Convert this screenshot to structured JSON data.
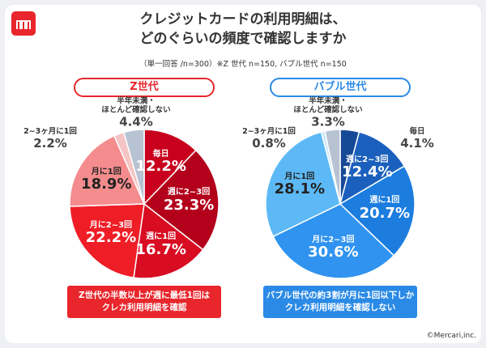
{
  "header": {
    "title": "クレジットカードの利用明細は、\nどのぐらいの頻度で確認しますか",
    "note": "（単一回答 /n=300）※Z 世代 n=150, バブル世代 n=150"
  },
  "chart_data": [
    {
      "type": "pie",
      "title": "Z世代",
      "categories": [
        "毎日",
        "週に2~3回",
        "週に1回",
        "月に2~3回",
        "月に1回",
        "2~3ヶ月に1回",
        "半年未満・\nほとんど確認しない"
      ],
      "values": [
        12.2,
        23.3,
        16.7,
        22.2,
        18.9,
        2.2,
        4.4
      ],
      "value_labels": [
        "12.2%",
        "23.3%",
        "16.7%",
        "22.2%",
        "18.9%",
        "2.2%",
        "4.4%"
      ],
      "colors": [
        "#c8001e",
        "#b3001b",
        "#d80d22",
        "#ef1d26",
        "#f48c8e",
        "#f6c4c4",
        "#b7c2d2"
      ],
      "callout": "Z世代の半数以上が週に最低1回は\nクレカ利用明細を確認"
    },
    {
      "type": "pie",
      "title": "バブル世代",
      "categories": [
        "毎日",
        "週に2~3回",
        "週に1回",
        "月に2~3回",
        "月に1回",
        "2~3ヶ月に1回",
        "半年未満・\nほとんど確認しない"
      ],
      "values": [
        4.1,
        12.4,
        20.7,
        30.6,
        28.1,
        0.8,
        3.3
      ],
      "value_labels": [
        "4.1%",
        "12.4%",
        "20.7%",
        "30.6%",
        "28.1%",
        "0.8%",
        "3.3%"
      ],
      "colors": [
        "#174a96",
        "#1c60bd",
        "#1c7ddf",
        "#2f93ef",
        "#5db9f5",
        "#c9e6fa",
        "#b7c2d2"
      ],
      "callout": "バブル世代の約3割が月に1回以下しか\nクレカ利用明細を確認しない"
    }
  ],
  "footer": {
    "copyright": "©Mercari,inc."
  }
}
